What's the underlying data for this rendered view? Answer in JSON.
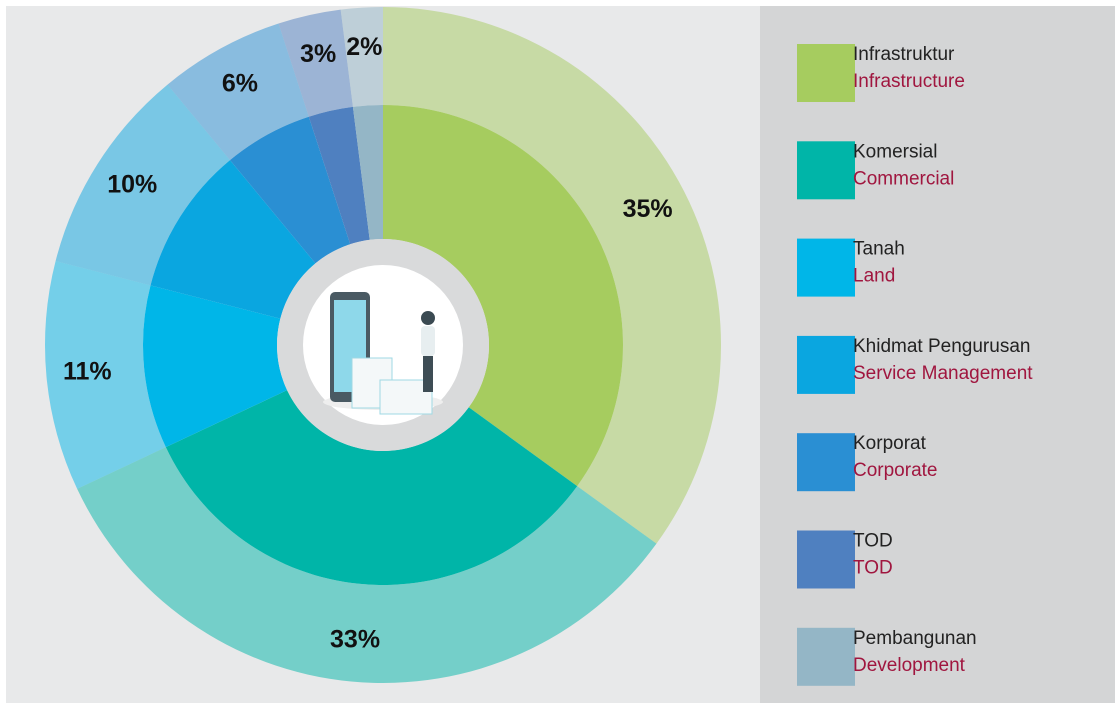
{
  "chart_data": {
    "type": "donut",
    "categories": [
      "Infrastruktur",
      "Komersial",
      "Tanah",
      "Khidmat Pengurusan",
      "Korporat",
      "TOD",
      "Pembangunan"
    ],
    "category_translations": [
      "Infrastructure",
      "Commercial",
      "Land",
      "Service Management",
      "Corporate",
      "TOD",
      "Development"
    ],
    "values": [
      35,
      33,
      11,
      10,
      6,
      3,
      2
    ],
    "value_labels": [
      "35%",
      "33%",
      "11%",
      "10%",
      "6%",
      "3%",
      "2%"
    ],
    "colors": [
      "#a6cc5f",
      "#00b5a8",
      "#00b6e8",
      "#0aa6e0",
      "#2a8fd3",
      "#4f80c0",
      "#94b6c6"
    ],
    "legend": "right"
  }
}
